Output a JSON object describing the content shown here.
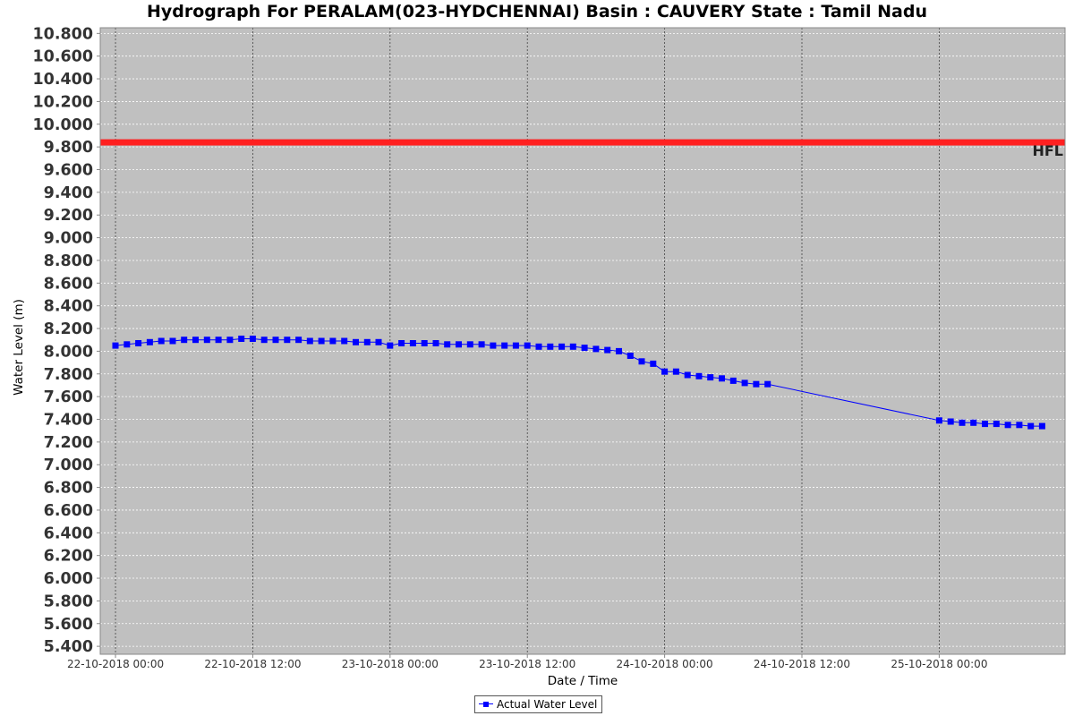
{
  "chart_data": {
    "type": "line",
    "title": "Hydrograph For PERALAM(023-HYDCHENNAI) Basin : CAUVERY State : Tamil Nadu",
    "xlabel": "Date / Time",
    "ylabel": "Water Level (m)",
    "ylim": [
      5.33,
      10.85
    ],
    "y_ticks": [
      "5.400",
      "5.600",
      "5.800",
      "6.000",
      "6.200",
      "6.400",
      "6.600",
      "6.800",
      "7.000",
      "7.200",
      "7.400",
      "7.600",
      "7.800",
      "8.000",
      "8.200",
      "8.400",
      "8.600",
      "8.800",
      "9.000",
      "9.200",
      "9.400",
      "9.600",
      "9.800",
      "10.000",
      "10.200",
      "10.400",
      "10.600",
      "10.800"
    ],
    "x_ticks": [
      "22-10-2018 00:00",
      "22-10-2018 12:00",
      "23-10-2018 00:00",
      "23-10-2018 12:00",
      "24-10-2018 00:00",
      "24-10-2018 12:00",
      "25-10-2018 00:00"
    ],
    "xlim": [
      "2018-10-21 22:40",
      "2018-10-25 11:00"
    ],
    "grid": true,
    "legend_position": "bottom-center",
    "reference_line": {
      "label": "HFL",
      "value": 9.84,
      "color": "#ff2020"
    },
    "series": [
      {
        "name": "Actual Water Level",
        "color": "#0000ff",
        "marker": "square",
        "x": [
          "2018-10-22 00:00",
          "2018-10-22 01:00",
          "2018-10-22 02:00",
          "2018-10-22 03:00",
          "2018-10-22 04:00",
          "2018-10-22 05:00",
          "2018-10-22 06:00",
          "2018-10-22 07:00",
          "2018-10-22 08:00",
          "2018-10-22 09:00",
          "2018-10-22 10:00",
          "2018-10-22 11:00",
          "2018-10-22 12:00",
          "2018-10-22 13:00",
          "2018-10-22 14:00",
          "2018-10-22 15:00",
          "2018-10-22 16:00",
          "2018-10-22 17:00",
          "2018-10-22 18:00",
          "2018-10-22 19:00",
          "2018-10-22 20:00",
          "2018-10-22 21:00",
          "2018-10-22 22:00",
          "2018-10-22 23:00",
          "2018-10-23 00:00",
          "2018-10-23 01:00",
          "2018-10-23 02:00",
          "2018-10-23 03:00",
          "2018-10-23 04:00",
          "2018-10-23 05:00",
          "2018-10-23 06:00",
          "2018-10-23 07:00",
          "2018-10-23 08:00",
          "2018-10-23 09:00",
          "2018-10-23 10:00",
          "2018-10-23 11:00",
          "2018-10-23 12:00",
          "2018-10-23 13:00",
          "2018-10-23 14:00",
          "2018-10-23 15:00",
          "2018-10-23 16:00",
          "2018-10-23 17:00",
          "2018-10-23 18:00",
          "2018-10-23 19:00",
          "2018-10-23 20:00",
          "2018-10-23 21:00",
          "2018-10-23 22:00",
          "2018-10-23 23:00",
          "2018-10-24 00:00",
          "2018-10-24 01:00",
          "2018-10-24 02:00",
          "2018-10-24 03:00",
          "2018-10-24 04:00",
          "2018-10-24 05:00",
          "2018-10-24 06:00",
          "2018-10-24 07:00",
          "2018-10-24 08:00",
          "2018-10-24 09:00",
          "2018-10-25 00:00",
          "2018-10-25 01:00",
          "2018-10-25 02:00",
          "2018-10-25 03:00",
          "2018-10-25 04:00",
          "2018-10-25 05:00",
          "2018-10-25 06:00",
          "2018-10-25 07:00",
          "2018-10-25 08:00",
          "2018-10-25 09:00"
        ],
        "values": [
          8.05,
          8.06,
          8.07,
          8.08,
          8.09,
          8.09,
          8.1,
          8.1,
          8.1,
          8.1,
          8.1,
          8.11,
          8.11,
          8.1,
          8.1,
          8.1,
          8.1,
          8.09,
          8.09,
          8.09,
          8.09,
          8.08,
          8.08,
          8.08,
          8.05,
          8.07,
          8.07,
          8.07,
          8.07,
          8.06,
          8.06,
          8.06,
          8.06,
          8.05,
          8.05,
          8.05,
          8.05,
          8.04,
          8.04,
          8.04,
          8.04,
          8.03,
          8.02,
          8.01,
          8.0,
          7.96,
          7.91,
          7.89,
          7.82,
          7.82,
          7.79,
          7.78,
          7.77,
          7.76,
          7.74,
          7.72,
          7.71,
          7.71,
          7.39,
          7.38,
          7.37,
          7.37,
          7.36,
          7.36,
          7.35,
          7.35,
          7.34,
          7.34
        ]
      }
    ]
  }
}
